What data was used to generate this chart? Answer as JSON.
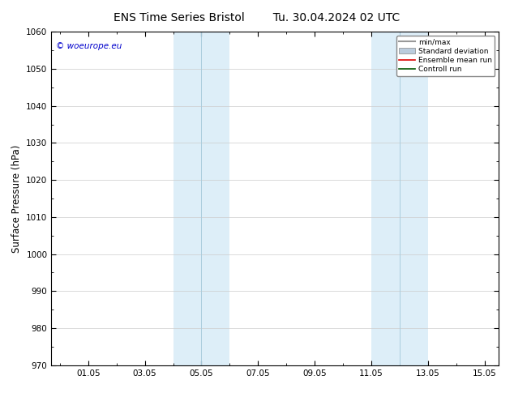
{
  "title": "ENS Time Series Bristol",
  "title2": "Tu. 30.04.2024 02 UTC",
  "ylabel": "Surface Pressure (hPa)",
  "ylim": [
    970,
    1060
  ],
  "yticks": [
    970,
    980,
    990,
    1000,
    1010,
    1020,
    1030,
    1040,
    1050,
    1060
  ],
  "xlim": [
    -0.3,
    15.5
  ],
  "xtick_labels": [
    "01.05",
    "03.05",
    "05.05",
    "07.05",
    "09.05",
    "11.05",
    "13.05",
    "15.05"
  ],
  "xtick_positions": [
    1,
    3,
    5,
    7,
    9,
    11,
    13,
    15
  ],
  "shaded_regions": [
    {
      "x_start": 4.0,
      "x_end": 4.5,
      "color": "#ddeef8"
    },
    {
      "x_start": 4.5,
      "x_end": 5.5,
      "color": "#ddeef8"
    },
    {
      "x_start": 11.0,
      "x_end": 11.5,
      "color": "#ddeef8"
    },
    {
      "x_start": 11.5,
      "x_end": 12.5,
      "color": "#ddeef8"
    }
  ],
  "shaded_divider_color": "#b8d4e8",
  "watermark_text": "© woeurope.eu",
  "watermark_color": "#0000cc",
  "background_color": "#ffffff",
  "legend_items": [
    {
      "label": "min/max",
      "color": "#999999",
      "lw": 1.5
    },
    {
      "label": "Standard deviation",
      "color": "#bbccdd",
      "lw": 6
    },
    {
      "label": "Ensemble mean run",
      "color": "#dd0000",
      "lw": 1.2
    },
    {
      "label": "Controll run",
      "color": "#005500",
      "lw": 1.2
    }
  ],
  "grid_color": "#cccccc",
  "tick_label_fontsize": 7.5,
  "axis_label_fontsize": 8.5,
  "title_fontsize": 10,
  "figsize": [
    6.34,
    4.9
  ],
  "dpi": 100
}
